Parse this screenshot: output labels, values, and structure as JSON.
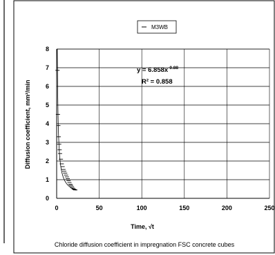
{
  "chart_data": {
    "type": "scatter",
    "xlabel": "Time, √t",
    "ylabel": "Diffusion coefficient, mm²/min",
    "caption": "Chloride diffusion coefficient in impregnation FSC concrete cubes",
    "xlim": [
      0,
      250
    ],
    "ylim": [
      0,
      8
    ],
    "x_ticks": [
      "0",
      "50",
      "100",
      "150",
      "200",
      "250"
    ],
    "y_ticks": [
      "0",
      "1",
      "2",
      "3",
      "4",
      "5",
      "6",
      "7",
      "8"
    ],
    "grid": true,
    "legend_position": "top-center",
    "series": [
      {
        "name": "M3WB",
        "color": "#000000",
        "x": [
          1,
          1.5,
          2,
          2.5,
          3,
          3.5,
          4,
          5,
          6,
          7,
          8,
          9,
          10,
          11,
          12,
          13,
          14,
          15,
          16,
          17,
          18,
          19,
          20,
          21,
          22
        ],
        "y": [
          6.86,
          4.5,
          3.9,
          3.3,
          2.9,
          2.6,
          2.4,
          2.1,
          1.85,
          1.7,
          1.55,
          1.45,
          1.35,
          1.25,
          1.15,
          1.05,
          0.95,
          0.85,
          0.75,
          0.7,
          0.62,
          0.55,
          0.5,
          0.47,
          0.45
        ]
      }
    ],
    "trendline": {
      "type": "power",
      "coefficient": 6.858,
      "exponent": -0.88,
      "equation_base": "y = 6.858x",
      "equation_exp": "-0.88",
      "r2_label": "R² = 0.858"
    }
  }
}
